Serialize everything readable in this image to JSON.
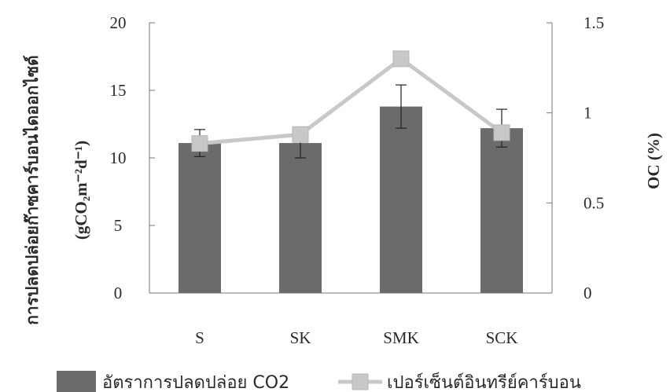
{
  "chart_data": {
    "type": "bar",
    "categories": [
      "S",
      "SK",
      "SMK",
      "SCK"
    ],
    "series": [
      {
        "name": "อัตราการปลดปล่อย CO2",
        "kind": "bar",
        "axis": "left",
        "values": [
          11.1,
          11.1,
          13.8,
          12.2
        ],
        "errors": [
          1.0,
          1.1,
          1.6,
          1.4
        ],
        "color": "#6b6b6b"
      },
      {
        "name": "เปอร์เซ็นต์อินทรีย์คาร์บอน",
        "kind": "line",
        "axis": "right",
        "values": [
          0.83,
          0.88,
          1.3,
          0.89
        ],
        "color": "#c8c8c8"
      }
    ],
    "ylabel_left_line1": "การปลดปล่อยก๊าซคาร์บอนไดออกไซด์",
    "ylabel_left_line2": "(gCO₂m⁻²d⁻¹)",
    "ylabel_right": "OC (%)",
    "ylim_left": [
      0,
      20
    ],
    "yticks_left": [
      "0",
      "5",
      "10",
      "15",
      "20"
    ],
    "ylim_right": [
      0,
      1.5
    ],
    "yticks_right": [
      "0",
      "0.5",
      "1",
      "1.5"
    ],
    "grid": false,
    "legend_position": "bottom"
  }
}
